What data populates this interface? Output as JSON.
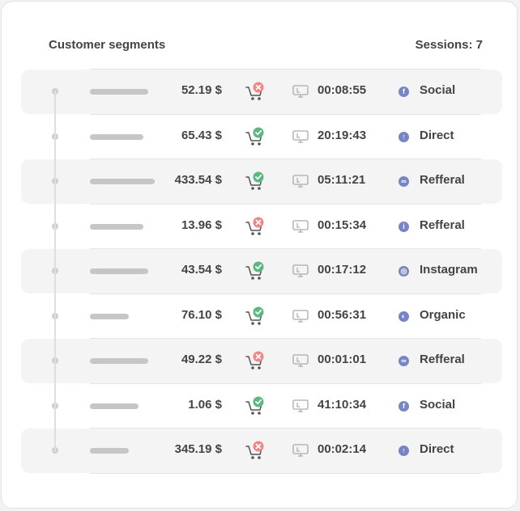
{
  "header": {
    "title": "Customer segments",
    "sessions": "Sessions: 7"
  },
  "colors": {
    "accent": "#7785c4",
    "success": "#4caf7a",
    "error": "#f07c7c"
  },
  "rows": [
    {
      "amount": "52.19  $",
      "status": "error",
      "time": "00:08:55",
      "source": "Social",
      "source_icon": "facebook-icon",
      "bar_level": 0.72
    },
    {
      "amount": "65.43 $",
      "status": "success",
      "time": "20:19:43",
      "source": "Direct",
      "source_icon": "arrow-up-icon",
      "bar_level": 0.66
    },
    {
      "amount": "433.54 $",
      "status": "success",
      "time": "05:11:21",
      "source": "Refferal",
      "source_icon": "link-icon",
      "bar_level": 0.8
    },
    {
      "amount": "13.96  $",
      "status": "error",
      "time": "00:15:34",
      "source": "Refferal",
      "source_icon": "info-icon",
      "bar_level": 0.66
    },
    {
      "amount": "43.54  $",
      "status": "success",
      "time": "00:17:12",
      "source": "Instagram",
      "source_icon": "instagram-icon",
      "bar_level": 0.72
    },
    {
      "amount": "76.10 $",
      "status": "success",
      "time": "00:56:31",
      "source": "Organic",
      "source_icon": "leaf-icon",
      "bar_level": 0.48
    },
    {
      "amount": "49.22  $",
      "status": "error",
      "time": "00:01:01",
      "source": "Refferal",
      "source_icon": "link-icon",
      "bar_level": 0.72
    },
    {
      "amount": "1.06 $",
      "status": "success",
      "time": "41:10:34",
      "source": "Social",
      "source_icon": "facebook-icon",
      "bar_level": 0.6
    },
    {
      "amount": "345.19  $",
      "status": "error",
      "time": "00:02:14",
      "source": "Direct",
      "source_icon": "arrow-up-icon",
      "bar_level": 0.48
    }
  ]
}
